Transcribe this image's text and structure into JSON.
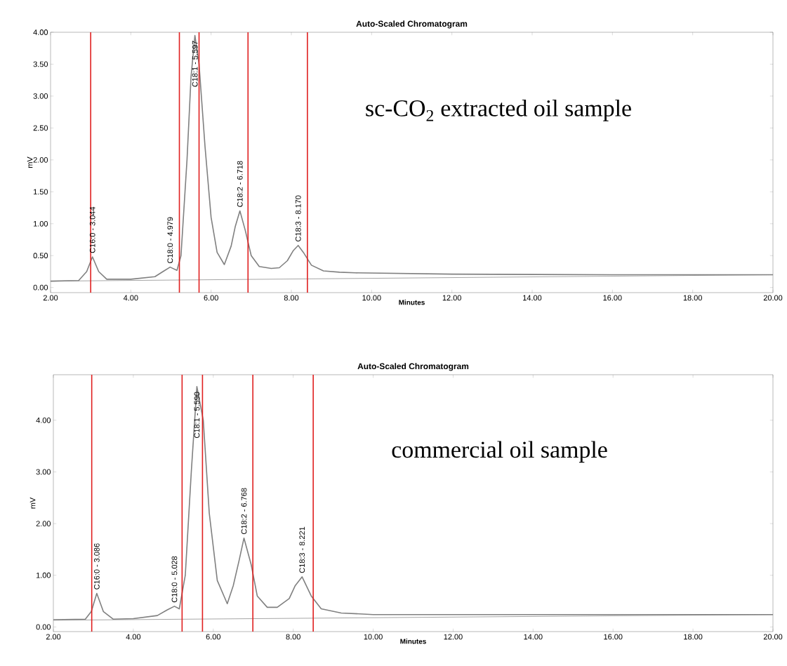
{
  "chart_data": [
    {
      "type": "line",
      "title": "Auto-Scaled Chromatogram",
      "xlabel": "Minutes",
      "ylabel": "mV",
      "xlim": [
        2.0,
        20.0
      ],
      "ylim": [
        -0.08,
        4.0
      ],
      "xticks": [
        {
          "value": 2,
          "label": "2.00"
        },
        {
          "value": 4,
          "label": "4.00"
        },
        {
          "value": 6,
          "label": "6.00"
        },
        {
          "value": 8,
          "label": "8.00"
        },
        {
          "value": 10,
          "label": "10.00"
        },
        {
          "value": 12,
          "label": "12.00"
        },
        {
          "value": 14,
          "label": "14.00"
        },
        {
          "value": 16,
          "label": "16.00"
        },
        {
          "value": 18,
          "label": "18.00"
        },
        {
          "value": 20,
          "label": "20.00"
        }
      ],
      "yticks": [
        {
          "value": 0,
          "label": "0.00"
        },
        {
          "value": 0.5,
          "label": "0.50"
        },
        {
          "value": 1,
          "label": "1.00"
        },
        {
          "value": 1.5,
          "label": "1.50"
        },
        {
          "value": 2,
          "label": "2.00"
        },
        {
          "value": 2.5,
          "label": "2.50"
        },
        {
          "value": 3,
          "label": "3.00"
        },
        {
          "value": 3.5,
          "label": "3.50"
        },
        {
          "value": 4,
          "label": "4.00"
        }
      ],
      "series": [
        {
          "color": "#808080",
          "x": [
            2.0,
            2.7,
            2.9,
            3.044,
            3.2,
            3.4,
            4.0,
            4.6,
            4.8,
            4.979,
            5.15,
            5.25,
            5.4,
            5.5,
            5.597,
            5.7,
            5.85,
            6.0,
            6.15,
            6.33,
            6.5,
            6.6,
            6.718,
            6.85,
            7.0,
            7.2,
            7.5,
            7.7,
            7.9,
            8.05,
            8.17,
            8.3,
            8.5,
            8.8,
            9.2,
            9.6,
            12.0,
            16.0,
            20.0
          ],
          "values": [
            0.1,
            0.11,
            0.25,
            0.48,
            0.25,
            0.13,
            0.13,
            0.17,
            0.25,
            0.32,
            0.27,
            0.5,
            2.0,
            3.3,
            3.95,
            3.5,
            2.2,
            1.1,
            0.55,
            0.36,
            0.65,
            0.95,
            1.2,
            0.9,
            0.5,
            0.33,
            0.3,
            0.31,
            0.42,
            0.58,
            0.66,
            0.55,
            0.35,
            0.26,
            0.24,
            0.23,
            0.21,
            0.2,
            0.2
          ]
        },
        {
          "color": "#808080",
          "x": [
            2.0,
            20.0
          ],
          "values": [
            0.1,
            0.2
          ]
        }
      ],
      "ref_lines": [
        {
          "axis": "x",
          "value": 3.0,
          "color": "#e02020"
        },
        {
          "axis": "x",
          "value": 5.21,
          "color": "#e02020"
        },
        {
          "axis": "x",
          "value": 5.7,
          "color": "#e02020"
        },
        {
          "axis": "x",
          "value": 6.92,
          "color": "#e02020"
        },
        {
          "axis": "x",
          "value": 8.4,
          "color": "#e02020"
        }
      ],
      "annotations": [
        {
          "text": "C16:0 - 3.044",
          "x": 3.044,
          "y": 0.48
        },
        {
          "text": "C18:0 - 4.979",
          "x": 4.979,
          "y": 0.32
        },
        {
          "text": "C18:1 - 5.597",
          "x": 5.597,
          "y": 3.95
        },
        {
          "text": "C18:2 - 6.718",
          "x": 6.718,
          "y": 1.2
        },
        {
          "text": "C18:3 - 8.170",
          "x": 8.17,
          "y": 0.66
        },
        "sc-CO$_{2}$ extracted oil sample"
      ]
    },
    {
      "type": "line",
      "title": "Auto-Scaled Chromatogram",
      "xlabel": "Minutes",
      "ylabel": "mV",
      "xlim": [
        2.0,
        20.0
      ],
      "ylim": [
        -0.09,
        4.88
      ],
      "xticks": [
        {
          "value": 2,
          "label": "2.00"
        },
        {
          "value": 4,
          "label": "4.00"
        },
        {
          "value": 6,
          "label": "6.00"
        },
        {
          "value": 8,
          "label": "8.00"
        },
        {
          "value": 10,
          "label": "10.00"
        },
        {
          "value": 12,
          "label": "12.00"
        },
        {
          "value": 14,
          "label": "14.00"
        },
        {
          "value": 16,
          "label": "16.00"
        },
        {
          "value": 18,
          "label": "18.00"
        },
        {
          "value": 20,
          "label": "20.00"
        }
      ],
      "yticks": [
        {
          "value": 0,
          "label": "0.00"
        },
        {
          "value": 1,
          "label": "1.00"
        },
        {
          "value": 2,
          "label": "2.00"
        },
        {
          "value": 3,
          "label": "3.00"
        },
        {
          "value": 4,
          "label": "4.00"
        }
      ],
      "series": [
        {
          "color": "#808080",
          "x": [
            2.0,
            2.8,
            2.95,
            3.086,
            3.25,
            3.5,
            4.0,
            4.6,
            4.85,
            5.028,
            5.15,
            5.3,
            5.45,
            5.59,
            5.75,
            5.9,
            6.1,
            6.35,
            6.5,
            6.65,
            6.768,
            6.95,
            7.1,
            7.35,
            7.6,
            7.9,
            8.05,
            8.221,
            8.45,
            8.7,
            9.2,
            10.0,
            14.0,
            20.0
          ],
          "values": [
            0.14,
            0.15,
            0.3,
            0.65,
            0.3,
            0.15,
            0.16,
            0.22,
            0.33,
            0.4,
            0.35,
            1.0,
            3.0,
            4.65,
            4.0,
            2.2,
            0.9,
            0.45,
            0.8,
            1.3,
            1.72,
            1.2,
            0.6,
            0.38,
            0.38,
            0.55,
            0.8,
            0.97,
            0.6,
            0.35,
            0.27,
            0.24,
            0.24,
            0.24
          ]
        },
        {
          "color": "#808080",
          "x": [
            2.0,
            20.0
          ],
          "values": [
            0.13,
            0.24
          ]
        }
      ],
      "ref_lines": [
        {
          "axis": "x",
          "value": 2.96,
          "color": "#e02020"
        },
        {
          "axis": "x",
          "value": 5.22,
          "color": "#e02020"
        },
        {
          "axis": "x",
          "value": 5.73,
          "color": "#e02020"
        },
        {
          "axis": "x",
          "value": 6.99,
          "color": "#e02020"
        },
        {
          "axis": "x",
          "value": 8.5,
          "color": "#e02020"
        }
      ],
      "annotations": [
        {
          "text": "C16:0 - 3.086",
          "x": 3.086,
          "y": 0.65
        },
        {
          "text": "C18:0 - 5.028",
          "x": 5.028,
          "y": 0.4
        },
        {
          "text": "C18:1 - 5.590",
          "x": 5.59,
          "y": 4.65
        },
        {
          "text": "C18:2 - 6.768",
          "x": 6.768,
          "y": 1.72
        },
        {
          "text": "C18:3 - 8.221",
          "x": 8.221,
          "y": 0.97
        },
        "commercial oil sample"
      ]
    }
  ]
}
